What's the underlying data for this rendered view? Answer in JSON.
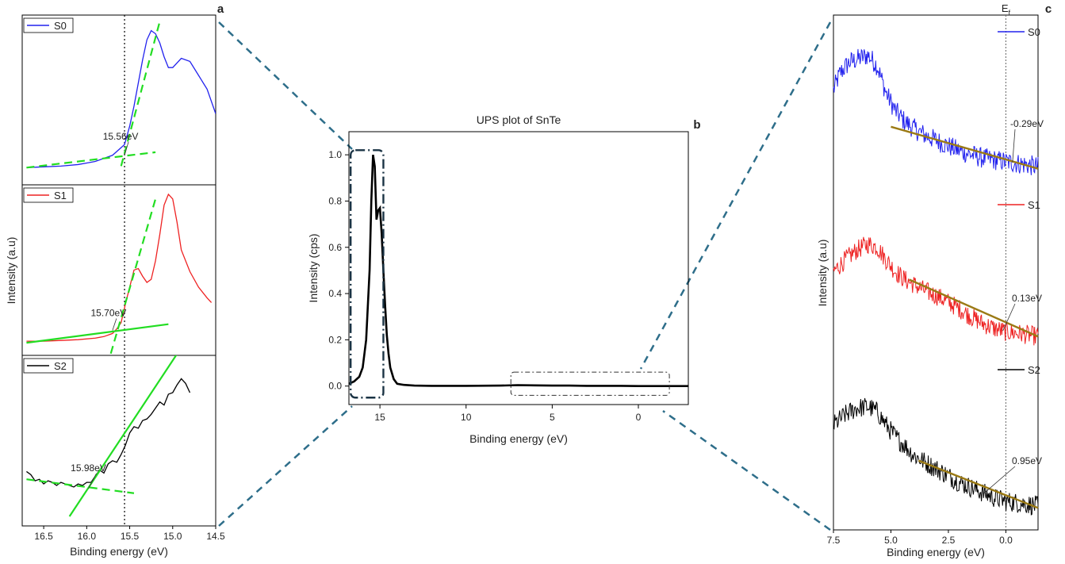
{
  "colors": {
    "blue": "#2222ee",
    "red": "#ee2222",
    "black": "#000000",
    "fit_green": "#22dd22",
    "fit_brown": "#9b7a14",
    "zoom_lines": "#2e6e8a"
  },
  "chart_data": [
    {
      "panel": "a",
      "type": "line",
      "xlabel": "Binding energy (eV)",
      "ylabel": "Intensity (a.u)",
      "xlim": [
        16.75,
        14.5
      ],
      "x_reversed": true,
      "xticks": [
        16.5,
        16.0,
        15.5,
        15.0,
        14.5
      ],
      "xtick_labels": [
        "16.5",
        "16.0",
        "15.5",
        "15.0",
        "14.5"
      ],
      "vertical_reference_line": 15.56,
      "subplots": [
        {
          "series_name": "S0",
          "color": "blue",
          "ylim": [
            0,
            1
          ],
          "x": [
            16.7,
            16.5,
            16.3,
            16.1,
            16.0,
            15.9,
            15.8,
            15.7,
            15.6,
            15.56,
            15.5,
            15.45,
            15.4,
            15.35,
            15.3,
            15.25,
            15.2,
            15.15,
            15.1,
            15.05,
            15.0,
            14.9,
            14.8,
            14.7,
            14.6,
            14.5
          ],
          "y": [
            0.05,
            0.055,
            0.06,
            0.07,
            0.08,
            0.09,
            0.11,
            0.13,
            0.18,
            0.2,
            0.32,
            0.45,
            0.6,
            0.75,
            0.88,
            0.94,
            0.92,
            0.86,
            0.77,
            0.7,
            0.7,
            0.76,
            0.74,
            0.65,
            0.56,
            0.4
          ],
          "onset_label": "15.56eV",
          "onset_x": 15.56,
          "fits": [
            {
              "x": [
                16.7,
                15.2
              ],
              "y": [
                0.05,
                0.15
              ],
              "style": "dashed"
            },
            {
              "x": [
                15.6,
                15.15
              ],
              "y": [
                0.06,
                1.0
              ],
              "style": "dashed"
            }
          ]
        },
        {
          "series_name": "S1",
          "color": "red",
          "ylim": [
            0,
            1
          ],
          "x": [
            16.7,
            16.5,
            16.3,
            16.1,
            15.9,
            15.8,
            15.7,
            15.65,
            15.6,
            15.55,
            15.5,
            15.45,
            15.4,
            15.35,
            15.3,
            15.25,
            15.2,
            15.15,
            15.1,
            15.05,
            15.0,
            14.95,
            14.9,
            14.8,
            14.7,
            14.6,
            14.55
          ],
          "y": [
            0.03,
            0.03,
            0.035,
            0.04,
            0.05,
            0.06,
            0.08,
            0.11,
            0.15,
            0.27,
            0.38,
            0.49,
            0.5,
            0.45,
            0.41,
            0.43,
            0.55,
            0.72,
            0.91,
            0.98,
            0.95,
            0.8,
            0.62,
            0.48,
            0.38,
            0.31,
            0.28
          ],
          "onset_label": "15.70eV",
          "onset_x": 15.7,
          "fits": [
            {
              "x": [
                16.7,
                15.05
              ],
              "y": [
                0.02,
                0.14
              ],
              "style": "solid"
            },
            {
              "x": [
                15.72,
                15.2
              ],
              "y": [
                -0.05,
                0.95
              ],
              "style": "dashed"
            }
          ]
        },
        {
          "series_name": "S2",
          "color": "black",
          "ylim": [
            0,
            1
          ],
          "x": [
            16.7,
            16.65,
            16.6,
            16.55,
            16.5,
            16.45,
            16.4,
            16.35,
            16.3,
            16.25,
            16.2,
            16.15,
            16.1,
            16.05,
            16.0,
            15.95,
            15.9,
            15.85,
            15.8,
            15.75,
            15.7,
            15.65,
            15.6,
            15.55,
            15.5,
            15.45,
            15.4,
            15.35,
            15.3,
            15.25,
            15.2,
            15.15,
            15.1,
            15.05,
            15.0,
            14.95,
            14.9,
            14.85,
            14.8
          ],
          "y": [
            0.29,
            0.27,
            0.23,
            0.24,
            0.21,
            0.23,
            0.22,
            0.2,
            0.22,
            0.21,
            0.2,
            0.19,
            0.21,
            0.2,
            0.22,
            0.22,
            0.26,
            0.3,
            0.28,
            0.34,
            0.36,
            0.35,
            0.4,
            0.46,
            0.54,
            0.58,
            0.57,
            0.62,
            0.63,
            0.66,
            0.7,
            0.74,
            0.72,
            0.79,
            0.8,
            0.85,
            0.89,
            0.86,
            0.8
          ],
          "onset_label": "15.98eV",
          "onset_x": 15.98,
          "fits": [
            {
              "x": [
                16.7,
                15.45
              ],
              "y": [
                0.24,
                0.15
              ],
              "style": "dashed"
            },
            {
              "x": [
                16.2,
                14.95
              ],
              "y": [
                0.0,
                1.05
              ],
              "style": "solid"
            }
          ]
        }
      ]
    },
    {
      "panel": "b",
      "type": "line",
      "title": "UPS plot of SnTe",
      "xlabel": "Binding energy (eV)",
      "ylabel": "Intensity (cps)",
      "xlim": [
        16.8,
        -2.9
      ],
      "x_reversed": true,
      "ylim": [
        -0.08,
        1.1
      ],
      "xticks": [
        15,
        10,
        5,
        0
      ],
      "xtick_labels": [
        "15",
        "10",
        "5",
        "0"
      ],
      "yticks": [
        0.0,
        0.2,
        0.4,
        0.6,
        0.8,
        1.0
      ],
      "ytick_labels": [
        "0.0",
        "0.2",
        "0.4",
        "0.6",
        "0.8",
        "1.0"
      ],
      "series": [
        {
          "name": "SnTe",
          "color": "black",
          "x": [
            16.8,
            16.5,
            16.2,
            16.0,
            15.8,
            15.6,
            15.5,
            15.4,
            15.3,
            15.2,
            15.1,
            15.0,
            14.9,
            14.8,
            14.7,
            14.6,
            14.5,
            14.4,
            14.2,
            14.0,
            13.6,
            13.0,
            12.0,
            10.0,
            8.0,
            7.0,
            6.0,
            5.0,
            4.0,
            3.0,
            2.0,
            1.0,
            0.0,
            -1.0,
            -2.0,
            -2.9
          ],
          "y": [
            0.01,
            0.02,
            0.04,
            0.08,
            0.2,
            0.5,
            0.8,
            1.0,
            0.95,
            0.72,
            0.76,
            0.77,
            0.66,
            0.5,
            0.35,
            0.22,
            0.14,
            0.08,
            0.03,
            0.01,
            0.005,
            0.002,
            0.001,
            0.001,
            0.002,
            0.004,
            0.003,
            0.002,
            0.002,
            0.001,
            0.001,
            0.001,
            0.0,
            0.0,
            0.0,
            0.0
          ]
        }
      ],
      "highlight_boxes": [
        {
          "x": [
            16.7,
            14.8
          ],
          "y": [
            -0.05,
            1.02
          ],
          "style": "dash-dot"
        },
        {
          "x": [
            7.4,
            -1.8
          ],
          "y": [
            -0.04,
            0.06
          ],
          "style": "dash-dot"
        }
      ]
    },
    {
      "panel": "c",
      "type": "line",
      "xlabel": "Binding energy (eV)",
      "ylabel": "Intensity (a.u)",
      "xlim": [
        7.5,
        -1.4
      ],
      "x_reversed": true,
      "xticks": [
        7.5,
        5.0,
        2.5,
        0.0
      ],
      "xtick_labels": [
        "7.5",
        "5.0",
        "2.5",
        "0.0"
      ],
      "fermi_label": "E",
      "fermi_subscript": "f",
      "fermi_x": 0,
      "subplots": [
        {
          "series_name": "S0",
          "color": "blue",
          "ylim": [
            0,
            1
          ],
          "onset_label": "-0.29eV",
          "onset_x": -0.29,
          "curve": [
            [
              7.5,
              0.62
            ],
            [
              7.2,
              0.72
            ],
            [
              6.8,
              0.78
            ],
            [
              6.4,
              0.8
            ],
            [
              6.0,
              0.82
            ],
            [
              5.6,
              0.76
            ],
            [
              5.2,
              0.6
            ],
            [
              4.8,
              0.5
            ],
            [
              4.4,
              0.44
            ],
            [
              4.0,
              0.4
            ],
            [
              3.5,
              0.36
            ],
            [
              3.0,
              0.33
            ],
            [
              2.5,
              0.3
            ],
            [
              2.0,
              0.27
            ],
            [
              1.5,
              0.25
            ],
            [
              1.0,
              0.23
            ],
            [
              0.5,
              0.22
            ],
            [
              0.0,
              0.21
            ],
            [
              -0.5,
              0.2
            ],
            [
              -1.0,
              0.19
            ],
            [
              -1.4,
              0.18
            ]
          ],
          "noise": 0.06,
          "fit": {
            "x": [
              5.0,
              -1.4
            ],
            "y": [
              0.41,
              0.17
            ]
          }
        },
        {
          "series_name": "S1",
          "color": "red",
          "ylim": [
            0,
            1
          ],
          "onset_label": "0.13eV",
          "onset_x": 0.13,
          "curve": [
            [
              7.5,
              0.55
            ],
            [
              7.0,
              0.62
            ],
            [
              6.5,
              0.68
            ],
            [
              6.0,
              0.72
            ],
            [
              5.6,
              0.7
            ],
            [
              5.2,
              0.62
            ],
            [
              4.8,
              0.55
            ],
            [
              4.4,
              0.5
            ],
            [
              4.0,
              0.47
            ],
            [
              3.5,
              0.43
            ],
            [
              3.0,
              0.4
            ],
            [
              2.5,
              0.36
            ],
            [
              2.0,
              0.32
            ],
            [
              1.5,
              0.27
            ],
            [
              1.0,
              0.23
            ],
            [
              0.5,
              0.2
            ],
            [
              0.0,
              0.18
            ],
            [
              -0.5,
              0.17
            ],
            [
              -1.0,
              0.16
            ],
            [
              -1.4,
              0.15
            ]
          ],
          "noise": 0.06,
          "fit": {
            "x": [
              4.2,
              -1.4
            ],
            "y": [
              0.5,
              0.15
            ]
          }
        },
        {
          "series_name": "S2",
          "color": "black",
          "ylim": [
            0,
            1
          ],
          "onset_label": "0.95eV",
          "onset_x": 0.95,
          "curve": [
            [
              7.5,
              0.62
            ],
            [
              7.0,
              0.68
            ],
            [
              6.5,
              0.72
            ],
            [
              6.0,
              0.73
            ],
            [
              5.6,
              0.7
            ],
            [
              5.2,
              0.62
            ],
            [
              4.8,
              0.55
            ],
            [
              4.4,
              0.5
            ],
            [
              4.0,
              0.44
            ],
            [
              3.5,
              0.4
            ],
            [
              3.0,
              0.36
            ],
            [
              2.5,
              0.32
            ],
            [
              2.0,
              0.28
            ],
            [
              1.5,
              0.25
            ],
            [
              1.0,
              0.22
            ],
            [
              0.5,
              0.19
            ],
            [
              0.0,
              0.17
            ],
            [
              -0.5,
              0.16
            ],
            [
              -1.0,
              0.15
            ],
            [
              -1.4,
              0.14
            ]
          ],
          "noise": 0.06,
          "fit": {
            "x": [
              3.8,
              -1.4
            ],
            "y": [
              0.41,
              0.13
            ]
          }
        }
      ]
    }
  ]
}
